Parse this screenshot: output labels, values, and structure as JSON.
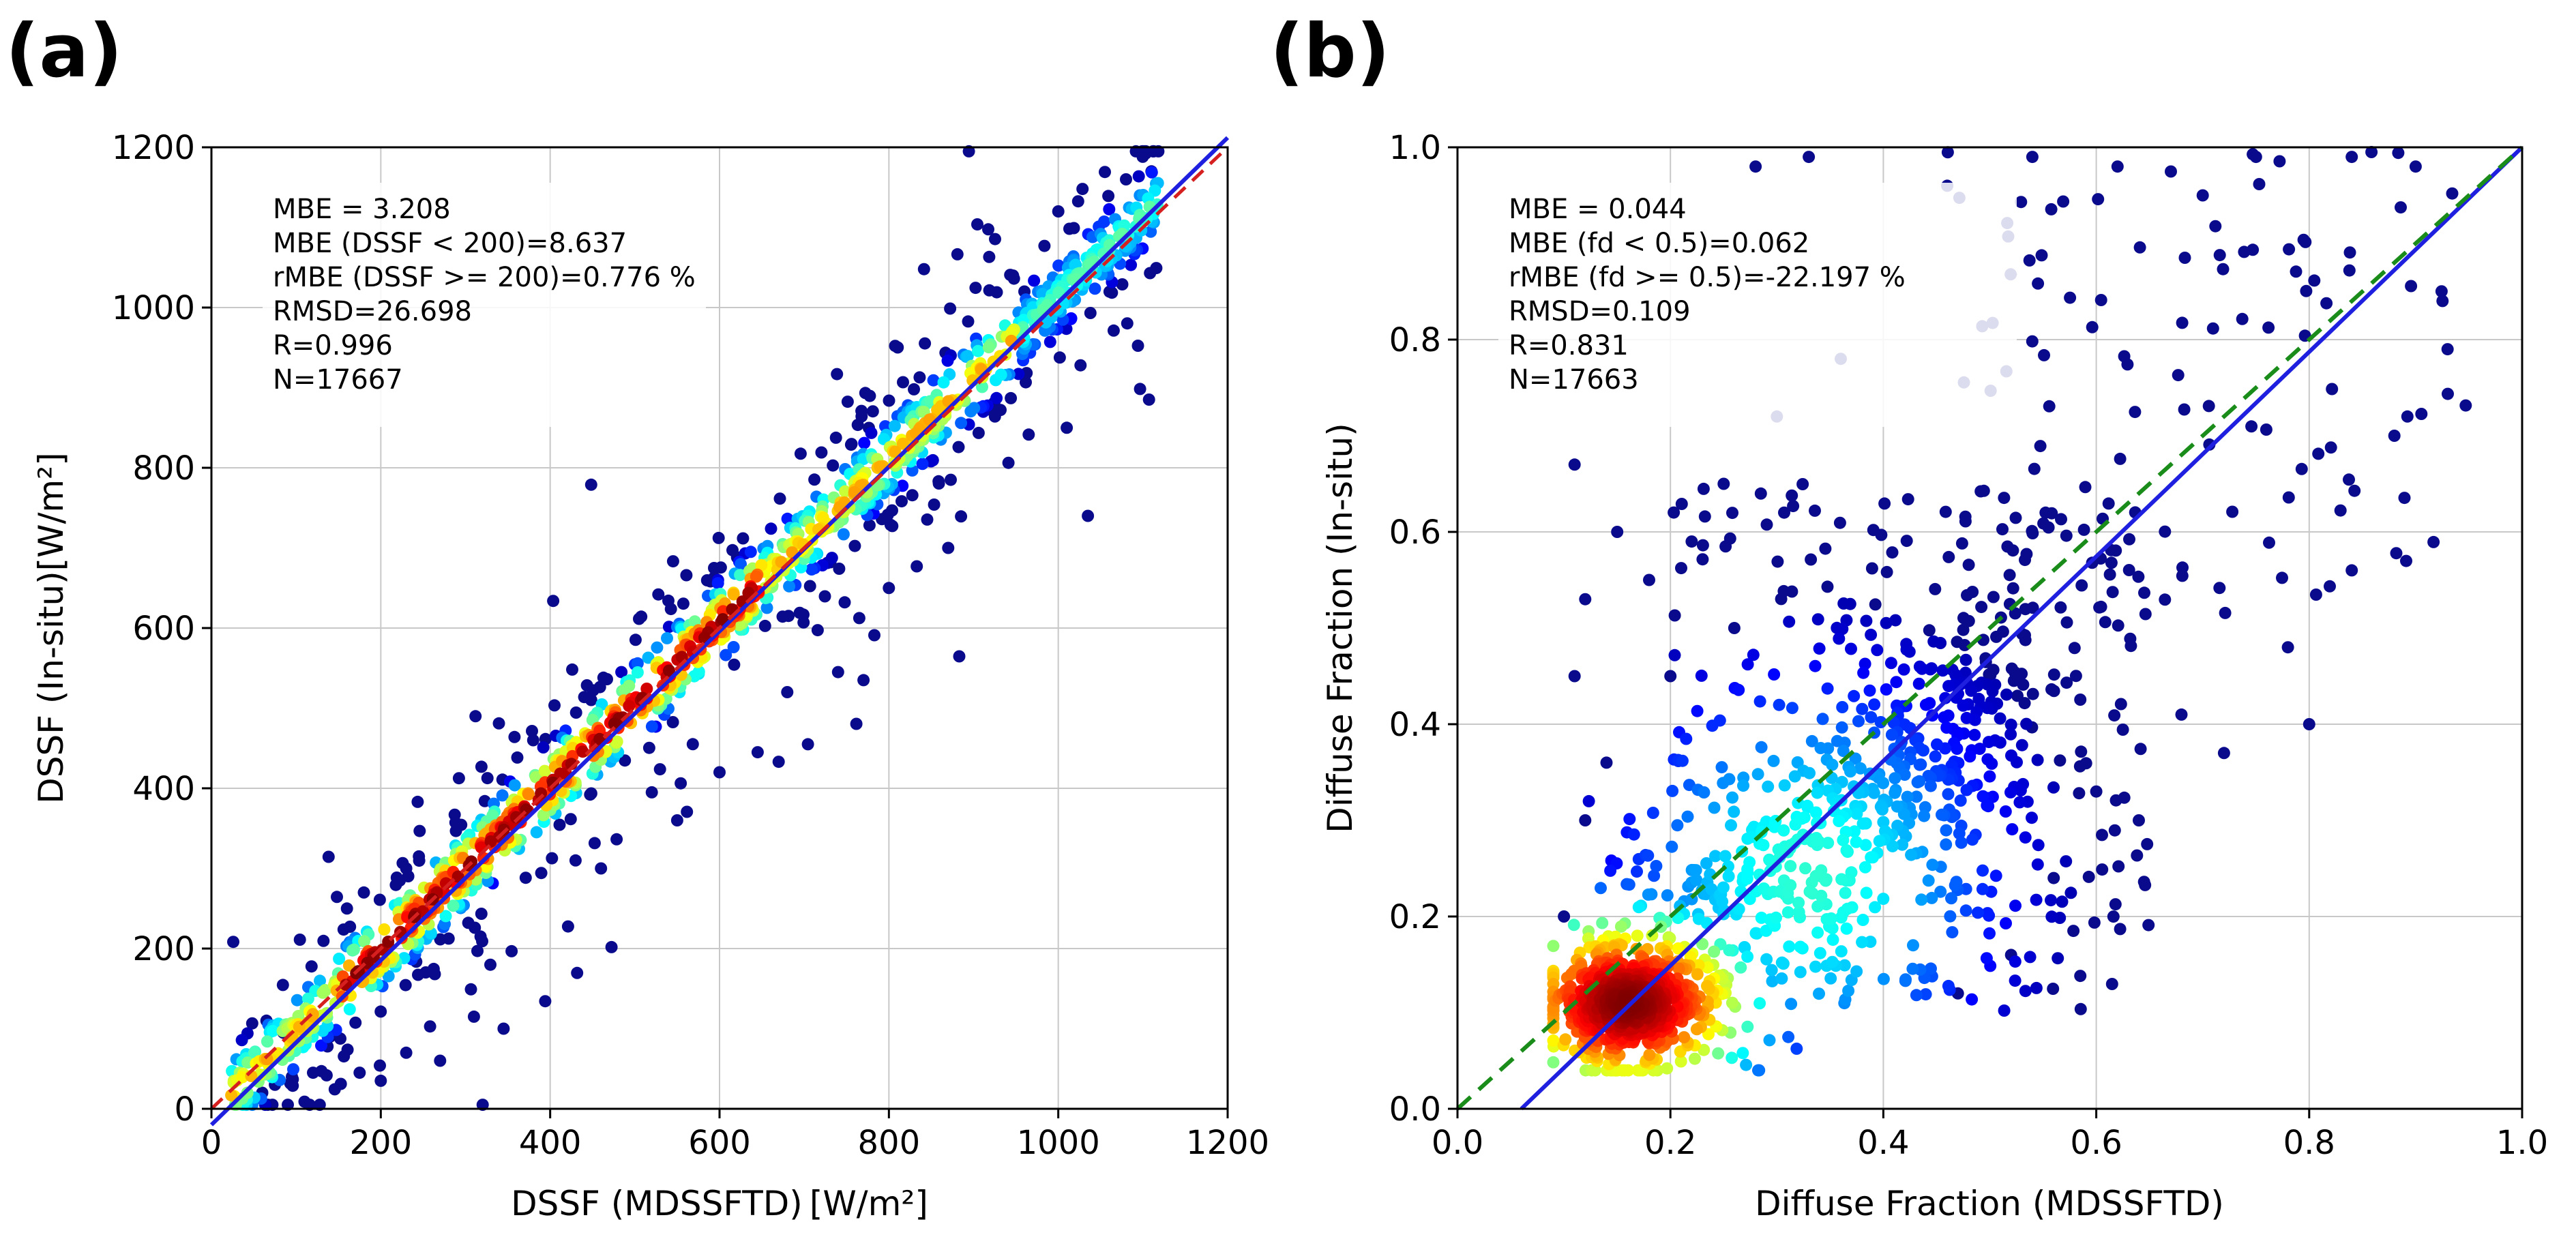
{
  "figure": {
    "colors": {
      "point_low": "#0a0a8c",
      "grid": "#c8c8c8",
      "fit_line": "#1f1fe0",
      "identity_line_a": "#d62020",
      "identity_line_b": "#1a8c1a",
      "stats_box": "#ffffff",
      "colormap": [
        "#00007f",
        "#0000ff",
        "#0080ff",
        "#00ffff",
        "#80ff80",
        "#ffff00",
        "#ff8000",
        "#ff0000",
        "#7f0000"
      ]
    }
  },
  "chart_data": [
    {
      "panel_label": "(a)",
      "type": "scatter",
      "style": "density-colored scatter",
      "xlabel_text": "DSSF (MDSSFTD)",
      "xlabel_unit": "[W/m²]",
      "ylabel_text": "DSSF (In-situ)",
      "ylabel_unit": "[W/m²]",
      "xlim": [
        0,
        1200
      ],
      "ylim": [
        0,
        1200
      ],
      "xticks": [
        0,
        200,
        400,
        600,
        800,
        1000,
        1200
      ],
      "yticks": [
        0,
        200,
        400,
        600,
        800,
        1000,
        1200
      ],
      "xtick_labels": [
        "0",
        "200",
        "400",
        "600",
        "800",
        "1000",
        "1200"
      ],
      "ytick_labels": [
        "0",
        "200",
        "400",
        "600",
        "800",
        "1000",
        "1200"
      ],
      "grid": true,
      "stats": [
        "MBE = 3.208",
        "MBE (DSSF < 200)=8.637",
        "rMBE (DSSF >= 200)=0.776 %",
        "RMSD=26.698",
        "R=0.996",
        "N=17667"
      ],
      "reference_line": {
        "name": "1:1",
        "style": "dashed",
        "x": [
          0,
          1200
        ],
        "y": [
          0,
          1200
        ]
      },
      "fit_line": {
        "name": "regression",
        "style": "solid",
        "x": [
          0,
          1200
        ],
        "y": [
          -20,
          1212
        ]
      },
      "cluster": {
        "x_range": [
          20,
          1120
        ],
        "slope": 1.02,
        "intercept": -5,
        "dense_spread": 25,
        "sparse_spread": 55,
        "outlier_spread": 140,
        "hotspot_x_range": [
          150,
          650
        ]
      },
      "outliers": [
        {
          "x": 1035,
          "y": 740
        },
        {
          "x": 1010,
          "y": 850
        },
        {
          "x": 770,
          "y": 535
        },
        {
          "x": 740,
          "y": 545
        },
        {
          "x": 645,
          "y": 445
        },
        {
          "x": 550,
          "y": 360
        },
        {
          "x": 520,
          "y": 395
        },
        {
          "x": 430,
          "y": 310
        },
        {
          "x": 345,
          "y": 100
        },
        {
          "x": 310,
          "y": 115
        },
        {
          "x": 270,
          "y": 60
        },
        {
          "x": 230,
          "y": 70
        },
        {
          "x": 200,
          "y": 35
        },
        {
          "x": 175,
          "y": 45
        },
        {
          "x": 140,
          "y": 90
        },
        {
          "x": 120,
          "y": 45
        },
        {
          "x": 95,
          "y": 40
        },
        {
          "x": 75,
          "y": 30
        },
        {
          "x": 60,
          "y": 20
        },
        {
          "x": 85,
          "y": 95
        },
        {
          "x": 65,
          "y": 110
        },
        {
          "x": 160,
          "y": 250
        },
        {
          "x": 180,
          "y": 270
        },
        {
          "x": 230,
          "y": 300
        },
        {
          "x": 245,
          "y": 315
        },
        {
          "x": 380,
          "y": 460
        },
        {
          "x": 960,
          "y": 1020
        },
        {
          "x": 1080,
          "y": 1160
        },
        {
          "x": 1110,
          "y": 1170
        },
        {
          "x": 1000,
          "y": 1120
        },
        {
          "x": 460,
          "y": 300
        },
        {
          "x": 600,
          "y": 420
        },
        {
          "x": 680,
          "y": 520
        },
        {
          "x": 800,
          "y": 650
        },
        {
          "x": 870,
          "y": 700
        }
      ]
    },
    {
      "panel_label": "(b)",
      "type": "scatter",
      "style": "density-colored scatter",
      "xlabel_text": "Diffuse Fraction (MDSSFTD)",
      "xlabel_unit": "",
      "ylabel_text": "Diffuse Fraction (In-situ)",
      "ylabel_unit": "",
      "xlim": [
        0.0,
        1.0
      ],
      "ylim": [
        0.0,
        1.0
      ],
      "xticks": [
        0.0,
        0.2,
        0.4,
        0.6,
        0.8,
        1.0
      ],
      "yticks": [
        0.0,
        0.2,
        0.4,
        0.6,
        0.8,
        1.0
      ],
      "xtick_labels": [
        "0.0",
        "0.2",
        "0.4",
        "0.6",
        "0.8",
        "1.0"
      ],
      "ytick_labels": [
        "0.0",
        "0.2",
        "0.4",
        "0.6",
        "0.8",
        "1.0"
      ],
      "grid": true,
      "stats": [
        "MBE = 0.044",
        "MBE (fd < 0.5)=0.062",
        "rMBE (fd >= 0.5)=-22.197 %",
        "RMSD=0.109",
        "R=0.831",
        "N=17663"
      ],
      "reference_line": {
        "name": "1:1",
        "style": "dashed",
        "x": [
          0,
          1
        ],
        "y": [
          0,
          1
        ]
      },
      "fit_line": {
        "name": "regression",
        "style": "solid",
        "x": [
          0.06,
          1.0
        ],
        "y": [
          0.0,
          1.0
        ]
      },
      "cluster": {
        "core": {
          "x": 0.16,
          "y": 0.11
        },
        "x_range": [
          0.09,
          1.0
        ],
        "y_range": [
          0.04,
          1.0
        ]
      },
      "outliers": [
        {
          "x": 0.93,
          "y": 0.79
        },
        {
          "x": 0.88,
          "y": 0.7
        },
        {
          "x": 0.84,
          "y": 0.56
        },
        {
          "x": 0.8,
          "y": 0.4
        },
        {
          "x": 0.78,
          "y": 0.48
        },
        {
          "x": 0.72,
          "y": 0.37
        },
        {
          "x": 0.68,
          "y": 0.41
        },
        {
          "x": 0.64,
          "y": 0.3
        },
        {
          "x": 0.6,
          "y": 0.33
        },
        {
          "x": 0.56,
          "y": 0.24
        },
        {
          "x": 0.52,
          "y": 0.16
        },
        {
          "x": 0.47,
          "y": 0.12
        },
        {
          "x": 0.11,
          "y": 0.67
        },
        {
          "x": 0.12,
          "y": 0.53
        },
        {
          "x": 0.11,
          "y": 0.45
        },
        {
          "x": 0.15,
          "y": 0.6
        },
        {
          "x": 0.18,
          "y": 0.55
        },
        {
          "x": 0.25,
          "y": 0.65
        },
        {
          "x": 0.22,
          "y": 0.59
        },
        {
          "x": 0.3,
          "y": 0.72
        },
        {
          "x": 0.36,
          "y": 0.78
        },
        {
          "x": 0.28,
          "y": 0.98
        },
        {
          "x": 0.33,
          "y": 0.99
        },
        {
          "x": 0.46,
          "y": 0.96
        },
        {
          "x": 0.54,
          "y": 0.99
        },
        {
          "x": 0.62,
          "y": 0.98
        },
        {
          "x": 0.7,
          "y": 0.95
        },
        {
          "x": 0.75,
          "y": 0.99
        },
        {
          "x": 0.84,
          "y": 0.99
        },
        {
          "x": 0.9,
          "y": 0.98
        },
        {
          "x": 0.12,
          "y": 0.3
        },
        {
          "x": 0.14,
          "y": 0.36
        },
        {
          "x": 0.1,
          "y": 0.2
        },
        {
          "x": 0.2,
          "y": 0.45
        },
        {
          "x": 0.26,
          "y": 0.5
        }
      ]
    }
  ]
}
